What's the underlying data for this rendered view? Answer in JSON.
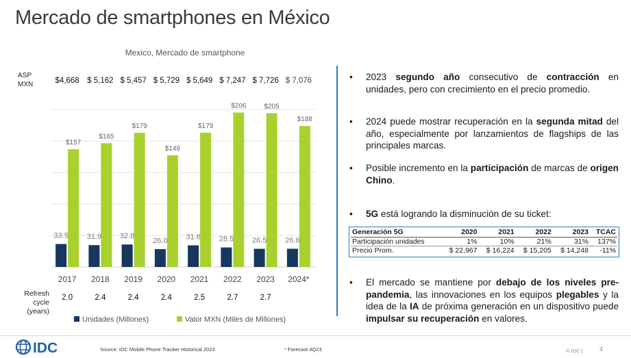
{
  "title": "Mercado de smartphones en México",
  "asp_label_line1": "ASP",
  "asp_label_line2": "MXN",
  "refresh_label_line1": "Refresh cycle",
  "refresh_label_line2": "(years)",
  "colors": {
    "units_bar": "#17375e",
    "value_bar": "#a8d12d",
    "divider": "#2e7ac2",
    "accent_text": "#1a1a1a"
  },
  "chart_data": {
    "type": "bar",
    "title": "Mexico, Mercado de smartphone",
    "categories": [
      "2017",
      "2018",
      "2019",
      "2020",
      "2021",
      "2022",
      "2023",
      "2024*"
    ],
    "series": [
      {
        "name": "Unidades (Millones)",
        "values": [
          33.5,
          31.9,
          32.8,
          26.0,
          31.6,
          28.5,
          26.5,
          26.6
        ],
        "labels": [
          "33.5",
          "31.9",
          "32.8",
          "26.0",
          "31.6",
          "28.5",
          "26.5",
          "26.6"
        ]
      },
      {
        "name": "Valor MXN (Miles de Millones)",
        "values": [
          157,
          165,
          179,
          149,
          179,
          206,
          205,
          188
        ],
        "labels": [
          "$157",
          "$165",
          "$179",
          "$149",
          "$179",
          "$206",
          "$205",
          "$188"
        ]
      }
    ],
    "asp_mxn": [
      "$4,668",
      "$ 5,162",
      "$ 5,457",
      "$ 5,729",
      "$ 5,649",
      "$ 7,247",
      "$ 7,726",
      "$ 7,076"
    ],
    "refresh_cycle_years": [
      "2.0",
      "2.4",
      "2.4",
      "2.4",
      "2.5",
      "2.7",
      "2.7",
      ""
    ],
    "ylim": [
      0,
      230
    ],
    "grid": true,
    "legend_position": "bottom"
  },
  "bullets": [
    {
      "id": "b1",
      "html": "2023 <b>segundo año</b> consecutivo de <b>contracción</b> en unidades, pero con crecimiento en el precio promedio."
    },
    {
      "id": "b2",
      "html": "2024 puede mostrar recuperación en la <b>segunda mitad</b> del año, especialmente por lanzamientos de flagships de las principales marcas."
    },
    {
      "id": "b3",
      "html": "Posible incremento en la <b>participación</b> de marcas de <b>origen Chino</b>."
    },
    {
      "id": "b4",
      "html": "<b>5G</b> está logrando la disminución de su ticket:"
    },
    {
      "id": "b5",
      "html": "El mercado se mantiene por <b>debajo de los niveles pre-pandemia</b>, las innovaciones en los equipos <b>plegables</b> y la idea de la <b>IA</b> de próxima generación en un dispositivo puede <b>impulsar su recuperación</b> en valores."
    }
  ],
  "g5_table": {
    "header": [
      "Generación 5G",
      "2020",
      "2021",
      "2022",
      "2023",
      "TCAC"
    ],
    "rows": [
      [
        "Participación unidades",
        "1%",
        "10%",
        "21%",
        "31%",
        "137%"
      ],
      [
        "Precio Prom.",
        "$ 22,967",
        "$ 16,224",
        "$ 15,205",
        "$ 14,248",
        "-11%"
      ]
    ]
  },
  "footer": {
    "logo_text": "IDC",
    "source": "Source: IDC Mobile Phone Tracker Historical 2023",
    "forecast_note": "* Forecast 4Q23",
    "copyright": "© IDC |",
    "page": "4"
  }
}
